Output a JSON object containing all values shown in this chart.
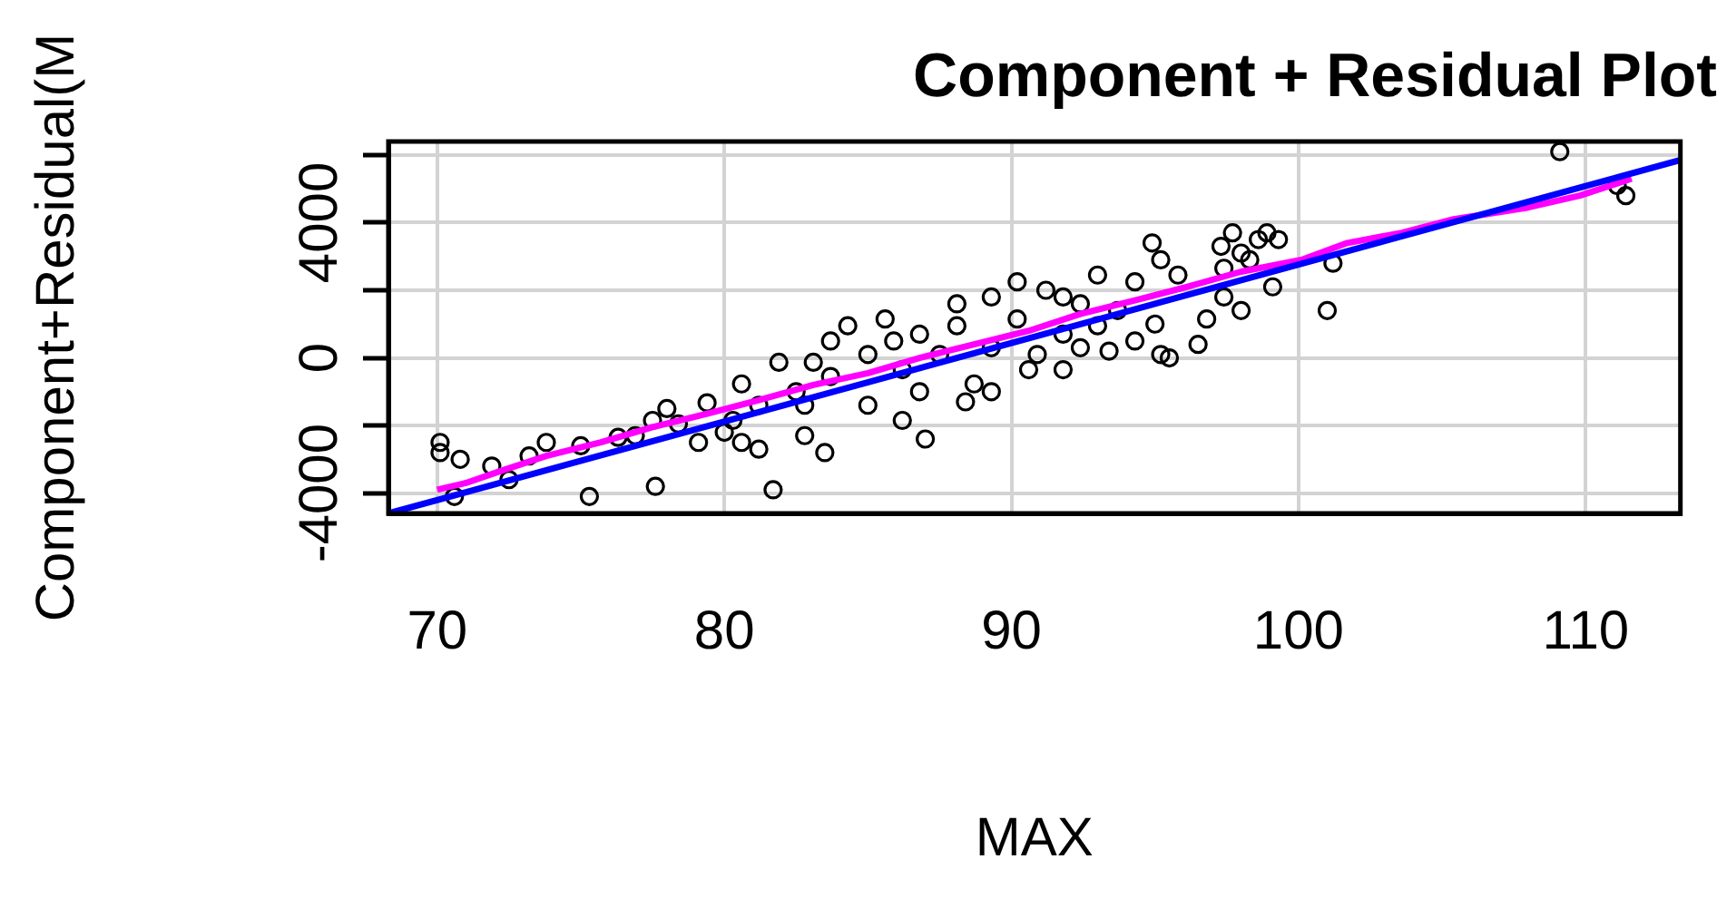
{
  "chart_data": {
    "type": "scatter",
    "title": "Component + Residual Plot",
    "xlabel": "MAX",
    "ylabel": "Component+Residual(M",
    "xlim": [
      68.3,
      113.3
    ],
    "xticks": [
      70,
      80,
      90,
      100,
      110
    ],
    "ylim": [
      -4600,
      6400
    ],
    "yticks": [
      -4000,
      {
        "value": -2000,
        "label": null
      },
      0,
      {
        "value": 2000,
        "label": null
      },
      4000,
      {
        "value": 6000,
        "label": null
      }
    ],
    "grid": true,
    "series": [
      {
        "marker": "circle",
        "color": "#000000",
        "x": [
          70.1,
          70.1,
          70.8,
          70.6,
          71.9,
          73.8,
          75.3,
          77.6,
          77.5,
          81.7,
          81.2,
          83.5,
          87,
          82.8,
          109.1,
          111.4,
          111.1,
          101.2,
          101,
          99.1,
          98.9,
          98.6,
          97.3,
          95,
          95.5,
          96.5,
          96.8,
          91.8,
          93.4,
          90.9,
          88.7,
          88.4,
          90.6,
          86.8,
          85.6,
          84.3,
          81.9,
          80.6,
          79.4,
          78,
          76.3,
          73.2,
          72.5,
          79.1,
          80,
          94.9,
          95.2,
          93,
          91.2,
          89.3,
          90.2,
          88.1,
          91.8,
          97.7,
          98.3,
          93.7,
          92.4,
          89.3,
          87.5,
          86.2,
          85,
          83.7,
          83.1,
          82.5,
          81.2,
          80.3,
          78.4,
          76.9,
          75,
          85.9,
          88.1,
          90.2,
          92.4,
          94.3,
          95.8,
          97.4,
          98,
          99.3,
          94.3,
          93,
          98,
          97.4,
          83.7,
          85,
          86.2,
          86.8,
          82.8,
          80.6,
          89.3,
          91.8,
          95.2
        ],
        "values": [
          -2500,
          -2800,
          -3000,
          -4100,
          -3200,
          -2500,
          -4100,
          -3800,
          -1850,
          -3900,
          -2700,
          -2800,
          -2400,
          -1400,
          6100,
          4800,
          5100,
          2800,
          1400,
          2100,
          3700,
          3500,
          3300,
          1000,
          0,
          400,
          1150,
          700,
          200,
          100,
          -770,
          -1300,
          -350,
          700,
          1150,
          950,
          -130,
          -770,
          -1330,
          -1500,
          -2350,
          -2900,
          -3600,
          -2500,
          -2200,
          3400,
          2900,
          2450,
          2000,
          1800,
          2250,
          1600,
          1800,
          3700,
          2900,
          1400,
          300,
          300,
          100,
          -350,
          100,
          -550,
          -130,
          -1000,
          -1400,
          -1850,
          -1950,
          -2300,
          -2600,
          500,
          950,
          1150,
          1600,
          2250,
          2450,
          2650,
          3100,
          3500,
          500,
          950,
          1400,
          1800,
          500,
          -1400,
          -1850,
          -1000,
          -2300,
          -2500,
          -1000,
          -350,
          100
        ]
      },
      {
        "type": "line",
        "color": "#0000ff",
        "x": [
          68.3,
          113.3
        ],
        "values": [
          -4600,
          5850
        ]
      },
      {
        "type": "line",
        "color": "#ff00ff",
        "x": [
          70,
          71,
          72.2,
          73.8,
          75.7,
          77.5,
          79.4,
          81.2,
          83.1,
          85,
          86.8,
          88.7,
          90.6,
          92.4,
          94.3,
          96.1,
          98,
          100.1,
          101.7,
          103.6,
          105.4,
          108,
          109.8,
          111.6
        ],
        "values": [
          -3900,
          -3700,
          -3350,
          -2900,
          -2500,
          -2050,
          -1650,
          -1250,
          -800,
          -450,
          0,
          400,
          800,
          1300,
          1700,
          2100,
          2550,
          2900,
          3400,
          3700,
          4100,
          4450,
          4800,
          5300
        ]
      }
    ]
  }
}
